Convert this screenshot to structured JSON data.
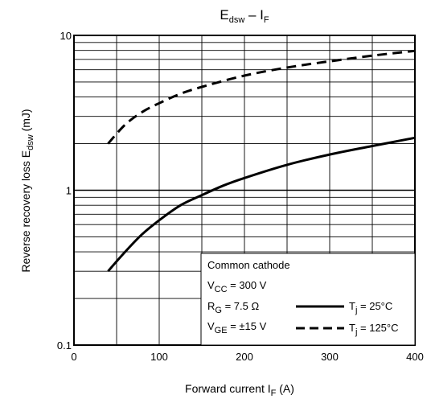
{
  "chart_data": {
    "type": "line",
    "title": {
      "main": "E",
      "sub": "dsw",
      "sep": " – I",
      "sub2": "F"
    },
    "xlabel": {
      "text": "Forward current   I",
      "sub": "F",
      "unit": "   (A)"
    },
    "ylabel": {
      "text": "Reverse recovery loss   E",
      "sub": "dsw",
      "unit": "   (mJ)"
    },
    "x_scale": "linear",
    "y_scale": "log",
    "xlim": [
      0,
      400
    ],
    "ylim": [
      0.1,
      10
    ],
    "x_ticks": [
      0,
      100,
      200,
      300,
      400
    ],
    "x_tick_labels": [
      "0",
      "100",
      "200",
      "300",
      "400"
    ],
    "y_tick_labels": [
      {
        "value": 0.1,
        "label": "0.1"
      },
      {
        "value": 1,
        "label": "1"
      },
      {
        "value": 10,
        "label": "10"
      }
    ],
    "grid": true,
    "legend_position": "bottom-right",
    "conditions": [
      {
        "text": "Common cathode"
      },
      {
        "pre": "V",
        "sub": "CC",
        "post": " = 300 V"
      },
      {
        "pre": "R",
        "sub": "G",
        "post": " = 7.5 Ω"
      },
      {
        "pre": "V",
        "sub": "GE",
        "post": " = ±15 V"
      }
    ],
    "series": [
      {
        "name": "Tj = 25°C",
        "label": {
          "pre": "T",
          "sub": "j",
          "post": " = 25°C"
        },
        "style": "solid",
        "x": [
          40,
          60,
          80,
          100,
          125,
          150,
          175,
          200,
          250,
          300,
          350,
          400
        ],
        "y": [
          0.3,
          0.4,
          0.52,
          0.64,
          0.8,
          0.93,
          1.07,
          1.2,
          1.46,
          1.7,
          1.93,
          2.18
        ]
      },
      {
        "name": "Tj = 125°C",
        "label": {
          "pre": "T",
          "sub": "j",
          "post": " = 125°C"
        },
        "style": "dashed",
        "x": [
          40,
          60,
          80,
          100,
          125,
          150,
          200,
          250,
          300,
          350,
          400
        ],
        "y": [
          2.0,
          2.65,
          3.2,
          3.65,
          4.2,
          4.65,
          5.5,
          6.2,
          6.8,
          7.4,
          7.95
        ]
      }
    ],
    "colors": {
      "lines": "#000000",
      "grid": "#000000",
      "background": "#ffffff"
    }
  }
}
